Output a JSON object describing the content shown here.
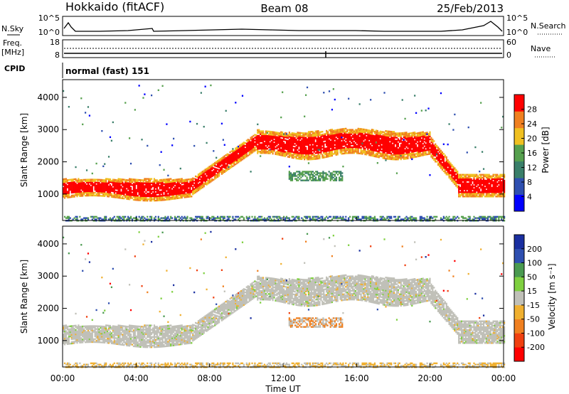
{
  "header": {
    "station": "Hokkaido (fitACF)",
    "beam": "Beam 08",
    "date": "25/Feb/2013"
  },
  "top_panels": {
    "nsky_label": "N.Sky",
    "nsky_ticks": [
      "10^5",
      "10^0"
    ],
    "nsearch_label": "N.Search",
    "nsearch_ticks": [
      "10^5",
      "10^0"
    ],
    "freq_label": "Freq.",
    "freq_unit": "[MHz]",
    "freq_ticks": [
      "18",
      "8"
    ],
    "nave_label": "Nave",
    "nave_ticks": [
      "60",
      "0"
    ],
    "cpid_label": "CPID",
    "cpid_value": "normal (fast) 151"
  },
  "chart_data": [
    {
      "type": "heatmap",
      "name": "power-panel",
      "ylabel": "Slant Range [km]",
      "yticks": [
        "4000",
        "3000",
        "2000",
        "1000"
      ],
      "ylim": [
        180,
        4550
      ],
      "xlim": [
        0,
        24
      ],
      "colorbar_label": "Power [dB]",
      "colorbar_ticks": [
        "28",
        "24",
        "20",
        "16",
        "12",
        "8",
        "4"
      ],
      "colorbar_range": [
        0,
        32
      ],
      "colors": [
        "#0000ff",
        "#2e4fb0",
        "#3a7f6a",
        "#56a04e",
        "#f0c020",
        "#f08020",
        "#ff0000"
      ]
    },
    {
      "type": "heatmap",
      "name": "velocity-panel",
      "ylabel": "Slant Range [km]",
      "yticks": [
        "4000",
        "3000",
        "2000",
        "1000"
      ],
      "ylim": [
        180,
        4550
      ],
      "xlim": [
        0,
        24
      ],
      "xlabel": "Time UT",
      "xticks": [
        "00:00",
        "04:00",
        "08:00",
        "12:00",
        "16:00",
        "20:00",
        "00:00"
      ],
      "colorbar_label": "Velocity [m s⁻¹]",
      "colorbar_ticks": [
        "200",
        "100",
        "50",
        "15",
        "-15",
        "-50",
        "-100",
        "-200"
      ],
      "colors": [
        "#ff0000",
        "#f04010",
        "#f08020",
        "#f0b030",
        "#c0c0b8",
        "#7fd040",
        "#4a9a50",
        "#2e4fb0",
        "#1a2fa0"
      ]
    }
  ]
}
